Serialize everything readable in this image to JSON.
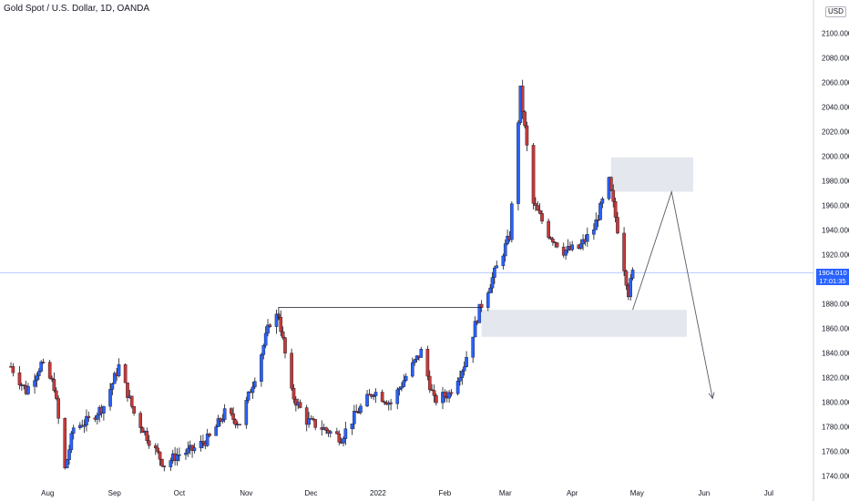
{
  "header": {
    "title": "Gold Spot / U.S. Dollar, 1D, OANDA",
    "currency": "USD"
  },
  "last_price": {
    "price": "1904.010",
    "countdown": "17:01:35"
  },
  "colors": {
    "up": "#2962ff",
    "down": "#c43a3a",
    "wick": "#131722",
    "zone": "#e0e3eb",
    "price_line": "#2962ff",
    "axis_line": "#b2b5be"
  },
  "chart_data": {
    "type": "candlestick",
    "title": "Gold Spot / U.S. Dollar, 1D, OANDA",
    "ylim": [
      1730,
      2110
    ],
    "y_ticks": [
      1740,
      1760,
      1780,
      1800,
      1820,
      1840,
      1860,
      1880,
      1900,
      1920,
      1940,
      1960,
      1980,
      2000,
      2020,
      2040,
      2060,
      2080,
      2100
    ],
    "y_tick_labels": [
      "1740.000",
      "1760.000",
      "1780.000",
      "1800.000",
      "1820.000",
      "1840.000",
      "1860.000",
      "1880.000",
      "1900.000",
      "1920.000",
      "1940.000",
      "1960.000",
      "1980.000",
      "2000.000",
      "2020.000",
      "2040.000",
      "2060.000",
      "2080.000",
      "2100.000"
    ],
    "x_start": "2021-07-15",
    "x_ticks": [
      {
        "label": "Aug",
        "date": "2021-08-01"
      },
      {
        "label": "Sep",
        "date": "2021-09-01"
      },
      {
        "label": "Oct",
        "date": "2021-10-01"
      },
      {
        "label": "Nov",
        "date": "2021-11-01"
      },
      {
        "label": "Dec",
        "date": "2021-12-01"
      },
      {
        "label": "2022",
        "date": "2022-01-01"
      },
      {
        "label": "Feb",
        "date": "2022-02-01"
      },
      {
        "label": "Mar",
        "date": "2022-03-01"
      },
      {
        "label": "Apr",
        "date": "2022-04-01"
      },
      {
        "label": "May",
        "date": "2022-05-01"
      },
      {
        "label": "Jun",
        "date": "2022-06-01"
      },
      {
        "label": "Jul",
        "date": "2022-07-01"
      }
    ],
    "close_path": [
      [
        "2021-07-15",
        1828
      ],
      [
        "2021-07-22",
        1808
      ],
      [
        "2021-07-29",
        1830
      ],
      [
        "2021-08-04",
        1812
      ],
      [
        "2021-08-09",
        1744
      ],
      [
        "2021-08-13",
        1778
      ],
      [
        "2021-08-20",
        1784
      ],
      [
        "2021-08-27",
        1796
      ],
      [
        "2021-09-03",
        1828
      ],
      [
        "2021-09-10",
        1790
      ],
      [
        "2021-09-17",
        1768
      ],
      [
        "2021-09-24",
        1748
      ],
      [
        "2021-09-30",
        1756
      ],
      [
        "2021-10-07",
        1760
      ],
      [
        "2021-10-15",
        1770
      ],
      [
        "2021-10-22",
        1790
      ],
      [
        "2021-10-29",
        1782
      ],
      [
        "2021-11-05",
        1820
      ],
      [
        "2021-11-12",
        1864
      ],
      [
        "2021-11-16",
        1870
      ],
      [
        "2021-11-22",
        1806
      ],
      [
        "2021-11-29",
        1784
      ],
      [
        "2021-12-06",
        1778
      ],
      [
        "2021-12-15",
        1770
      ],
      [
        "2021-12-22",
        1790
      ],
      [
        "2021-12-30",
        1808
      ],
      [
        "2022-01-07",
        1798
      ],
      [
        "2022-01-14",
        1820
      ],
      [
        "2022-01-21",
        1840
      ],
      [
        "2022-01-27",
        1800
      ],
      [
        "2022-02-03",
        1806
      ],
      [
        "2022-02-10",
        1830
      ],
      [
        "2022-02-17",
        1874
      ],
      [
        "2022-02-24",
        1904
      ],
      [
        "2022-03-03",
        1934
      ],
      [
        "2022-03-08",
        2052
      ],
      [
        "2022-03-14",
        1960
      ],
      [
        "2022-03-21",
        1936
      ],
      [
        "2022-03-28",
        1922
      ],
      [
        "2022-04-04",
        1924
      ],
      [
        "2022-04-11",
        1940
      ],
      [
        "2022-04-18",
        1978
      ],
      [
        "2022-04-22",
        1940
      ],
      [
        "2022-04-27",
        1888
      ],
      [
        "2022-04-29",
        1904
      ]
    ],
    "resistance_line": {
      "price": 1876,
      "from": "2021-11-16",
      "to": "2022-02-18"
    },
    "zones": [
      {
        "price_from": 1970,
        "price_to": 1998,
        "date_from": "2022-04-19",
        "date_to": "2022-05-27"
      },
      {
        "price_from": 1852,
        "price_to": 1874,
        "date_from": "2022-02-18",
        "date_to": "2022-05-24"
      }
    ],
    "projection": [
      [
        "2022-04-29",
        1874
      ],
      [
        "2022-05-17",
        1970
      ],
      [
        "2022-06-05",
        1802
      ]
    ],
    "last_price": 1904.01,
    "grid": false,
    "legend": "none"
  }
}
